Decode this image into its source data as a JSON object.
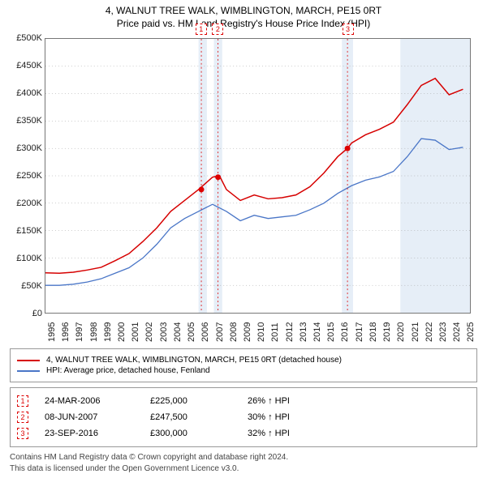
{
  "title": "4, WALNUT TREE WALK, WIMBLINGTON, MARCH, PE15 0RT",
  "subtitle": "Price paid vs. HM Land Registry's House Price Index (HPI)",
  "chart": {
    "type": "line",
    "ylim": [
      0,
      500000
    ],
    "ytick_step": 50000,
    "yticks": [
      "£0",
      "£50K",
      "£100K",
      "£150K",
      "£200K",
      "£250K",
      "£300K",
      "£350K",
      "£400K",
      "£450K",
      "£500K"
    ],
    "xmin": 1995,
    "xmax": 2025.5,
    "xticks": [
      1995,
      1996,
      1997,
      1998,
      1999,
      2000,
      2001,
      2002,
      2003,
      2004,
      2005,
      2006,
      2007,
      2008,
      2009,
      2010,
      2011,
      2012,
      2013,
      2014,
      2015,
      2016,
      2017,
      2018,
      2019,
      2020,
      2021,
      2022,
      2023,
      2024,
      2025
    ],
    "grid_color": "#999999",
    "band_color": "#dbe7f3",
    "series": [
      {
        "name": "property",
        "color": "#d60000",
        "width": 1.5,
        "points": [
          [
            1995,
            73000
          ],
          [
            1996,
            72000
          ],
          [
            1997,
            74000
          ],
          [
            1998,
            78000
          ],
          [
            1999,
            83000
          ],
          [
            2000,
            95000
          ],
          [
            2001,
            108000
          ],
          [
            2002,
            130000
          ],
          [
            2003,
            155000
          ],
          [
            2004,
            185000
          ],
          [
            2005,
            205000
          ],
          [
            2006,
            225000
          ],
          [
            2007,
            247500
          ],
          [
            2007.5,
            250000
          ],
          [
            2008,
            225000
          ],
          [
            2009,
            205000
          ],
          [
            2010,
            215000
          ],
          [
            2011,
            208000
          ],
          [
            2012,
            210000
          ],
          [
            2013,
            215000
          ],
          [
            2014,
            230000
          ],
          [
            2015,
            255000
          ],
          [
            2016,
            285000
          ],
          [
            2016.7,
            300000
          ],
          [
            2017,
            310000
          ],
          [
            2018,
            325000
          ],
          [
            2019,
            335000
          ],
          [
            2020,
            348000
          ],
          [
            2021,
            380000
          ],
          [
            2022,
            415000
          ],
          [
            2023,
            428000
          ],
          [
            2024,
            398000
          ],
          [
            2025,
            408000
          ]
        ]
      },
      {
        "name": "hpi",
        "color": "#4a76c7",
        "width": 1.3,
        "points": [
          [
            1995,
            50000
          ],
          [
            1996,
            50000
          ],
          [
            1997,
            52000
          ],
          [
            1998,
            56000
          ],
          [
            1999,
            62000
          ],
          [
            2000,
            72000
          ],
          [
            2001,
            82000
          ],
          [
            2002,
            100000
          ],
          [
            2003,
            125000
          ],
          [
            2004,
            155000
          ],
          [
            2005,
            172000
          ],
          [
            2006,
            185000
          ],
          [
            2007,
            198000
          ],
          [
            2008,
            185000
          ],
          [
            2009,
            168000
          ],
          [
            2010,
            178000
          ],
          [
            2011,
            172000
          ],
          [
            2012,
            175000
          ],
          [
            2013,
            178000
          ],
          [
            2014,
            188000
          ],
          [
            2015,
            200000
          ],
          [
            2016,
            218000
          ],
          [
            2017,
            232000
          ],
          [
            2018,
            242000
          ],
          [
            2019,
            248000
          ],
          [
            2020,
            258000
          ],
          [
            2021,
            285000
          ],
          [
            2022,
            318000
          ],
          [
            2023,
            315000
          ],
          [
            2024,
            298000
          ],
          [
            2025,
            302000
          ]
        ]
      }
    ],
    "vbands": [
      [
        2006,
        2006.6
      ],
      [
        2007.1,
        2007.7
      ],
      [
        2016.3,
        2017.1
      ],
      [
        2020.5,
        2025.5
      ]
    ],
    "sale_markers": [
      {
        "n": "1",
        "x": 2006.2,
        "y": 225000
      },
      {
        "n": "2",
        "x": 2007.4,
        "y": 247500
      },
      {
        "n": "3",
        "x": 2016.7,
        "y": 300000
      }
    ]
  },
  "legend": [
    {
      "color": "#d60000",
      "label": "4, WALNUT TREE WALK, WIMBLINGTON, MARCH, PE15 0RT (detached house)"
    },
    {
      "color": "#4a76c7",
      "label": "HPI: Average price, detached house, Fenland"
    }
  ],
  "sales": [
    {
      "n": "1",
      "date": "24-MAR-2006",
      "price": "£225,000",
      "hpi": "26% ↑ HPI"
    },
    {
      "n": "2",
      "date": "08-JUN-2007",
      "price": "£247,500",
      "hpi": "30% ↑ HPI"
    },
    {
      "n": "3",
      "date": "23-SEP-2016",
      "price": "£300,000",
      "hpi": "32% ↑ HPI"
    }
  ],
  "footer1": "Contains HM Land Registry data © Crown copyright and database right 2024.",
  "footer2": "This data is licensed under the Open Government Licence v3.0."
}
